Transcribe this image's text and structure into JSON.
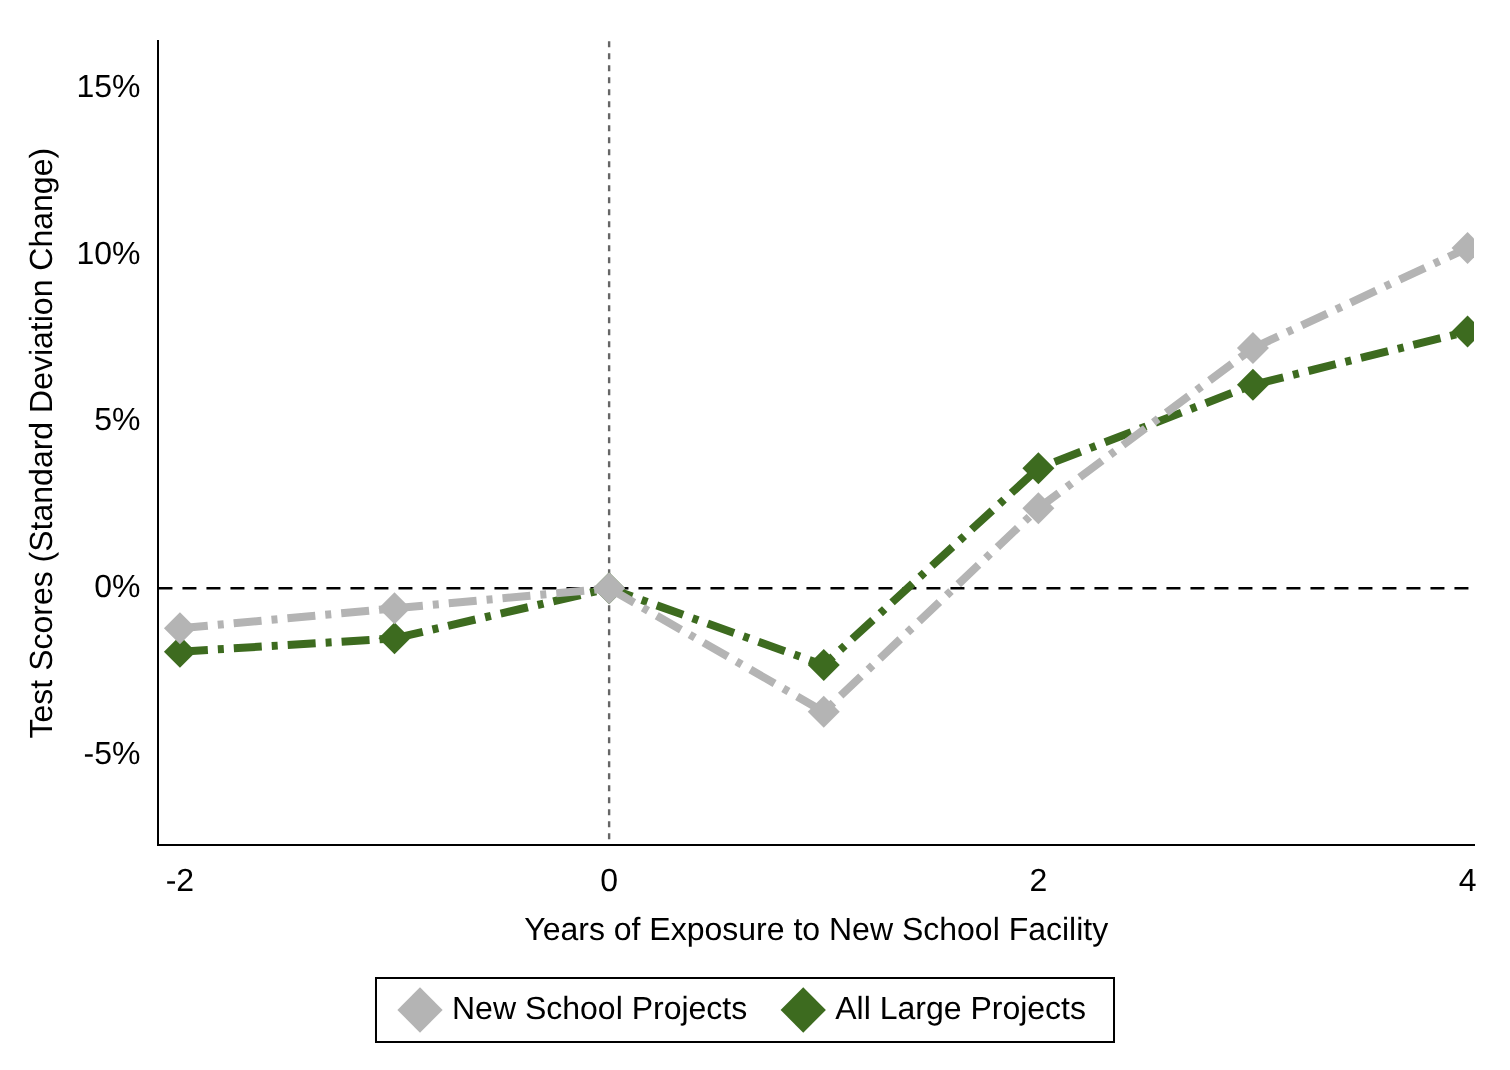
{
  "chart_data": {
    "type": "line",
    "xlabel": "Years of Exposure to New School Facility",
    "ylabel": "Test Scores (Standard Deviation Change)",
    "x": [
      -2,
      -1,
      0,
      1,
      2,
      3,
      4
    ],
    "series": [
      {
        "name": "New School Projects",
        "color": "#b4b4b4",
        "values": [
          -1.2,
          -0.6,
          0,
          -3.7,
          2.4,
          7.2,
          10.2
        ]
      },
      {
        "name": "All Large Projects",
        "color": "#3d6b1f",
        "values": [
          -1.9,
          -1.5,
          0,
          -2.3,
          3.6,
          6.1,
          7.7
        ]
      }
    ],
    "xlim": [
      -2.1,
      4.03
    ],
    "xticks": [
      -2,
      0,
      2,
      4
    ],
    "ylim": [
      -7.7,
      16.4
    ],
    "yticks": [
      {
        "value": -5,
        "label": "-5%"
      },
      {
        "value": 0,
        "label": "0%"
      },
      {
        "value": 5,
        "label": "5%"
      },
      {
        "value": 10,
        "label": "10%"
      },
      {
        "value": 15,
        "label": "15%"
      }
    ],
    "ref_lines": [
      {
        "axis": "y",
        "value": 0,
        "color": "#000000",
        "line_style": "dashed"
      },
      {
        "axis": "x",
        "value": 0,
        "color": "#666666",
        "line_style": "dotted"
      }
    ],
    "grid": false,
    "legend": "bottom",
    "marker": "diamond",
    "line_style": "dashed"
  }
}
